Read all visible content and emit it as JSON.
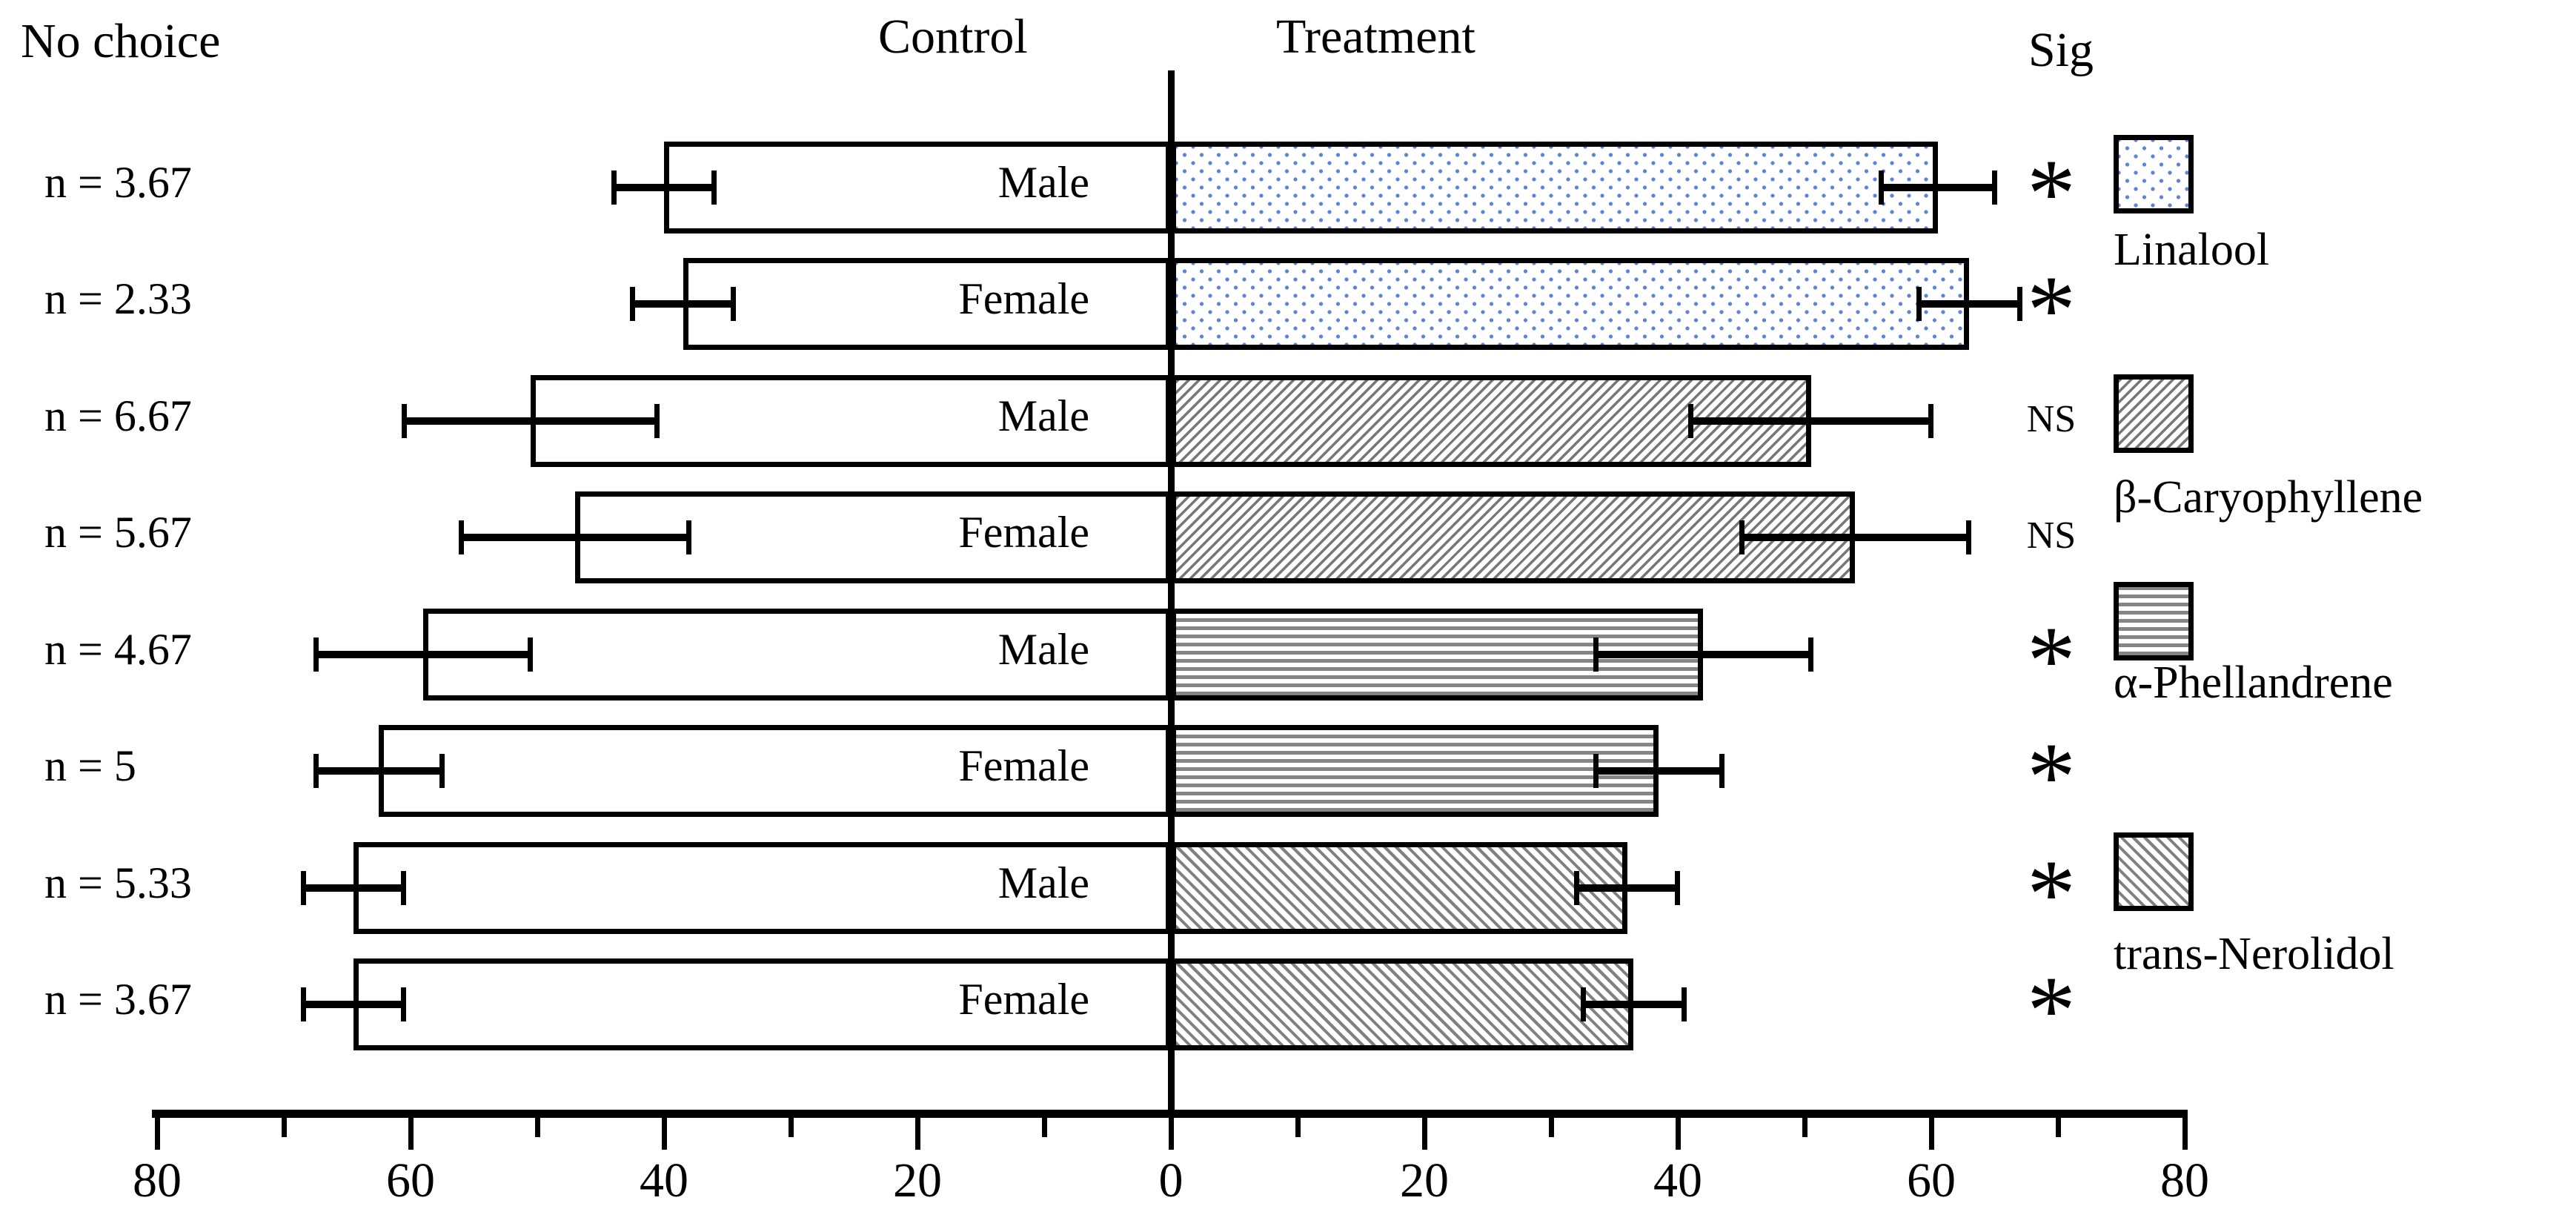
{
  "colors": {
    "dot_blue": "#5b84d8",
    "hatch_gray": "#7b7b7b",
    "line_black": "#000000",
    "background": "#ffffff"
  },
  "chart_data": {
    "type": "bar",
    "subtype": "diverging-horizontal-with-error-bars",
    "title": "No choice",
    "left_header": "Control",
    "right_header": "Treatment",
    "sig_header": "Sig",
    "xlabel": "",
    "xlim": [
      -80,
      80
    ],
    "x_ticks": [
      -80,
      -60,
      -40,
      -20,
      0,
      20,
      40,
      60,
      80
    ],
    "x_minor_ticks": [
      -70,
      -50,
      -30,
      -10,
      10,
      30,
      50,
      70
    ],
    "x_tick_labels": [
      "80",
      "60",
      "40",
      "20",
      "0",
      "20",
      "40",
      "60",
      "80"
    ],
    "grid": false,
    "rows": [
      {
        "compound": "Linalool",
        "sex": "Male",
        "n_label": "n = 3.67",
        "n": 3.67,
        "control": 40,
        "control_err": 4,
        "treatment": 60.5,
        "treatment_err": 4.5,
        "sig": "*"
      },
      {
        "compound": "Linalool",
        "sex": "Female",
        "n_label": "n = 2.33",
        "n": 2.33,
        "control": 38.5,
        "control_err": 4,
        "treatment": 63,
        "treatment_err": 4,
        "sig": "*"
      },
      {
        "compound": "β-Caryophyllene",
        "sex": "Male",
        "n_label": "n = 6.67",
        "n": 6.67,
        "control": 50.5,
        "control_err": 10,
        "treatment": 50.5,
        "treatment_err": 9.5,
        "sig": "NS"
      },
      {
        "compound": "β-Caryophyllene",
        "sex": "Female",
        "n_label": "n = 5.67",
        "n": 5.67,
        "control": 47,
        "control_err": 9,
        "treatment": 54,
        "treatment_err": 9,
        "sig": "NS"
      },
      {
        "compound": "α-Phellandrene",
        "sex": "Male",
        "n_label": "n = 4.67",
        "n": 4.67,
        "control": 59,
        "control_err": 8.5,
        "treatment": 42,
        "treatment_err": 8.5,
        "sig": "*"
      },
      {
        "compound": "α-Phellandrene",
        "sex": "Female",
        "n_label": "n = 5",
        "n": 5,
        "control": 62.5,
        "control_err": 5,
        "treatment": 38.5,
        "treatment_err": 5,
        "sig": "*"
      },
      {
        "compound": "trans-Nerolidol",
        "sex": "Male",
        "n_label": "n = 5.33",
        "n": 5.33,
        "control": 64.5,
        "control_err": 4,
        "treatment": 36,
        "treatment_err": 4,
        "sig": "*"
      },
      {
        "compound": "trans-Nerolidol",
        "sex": "Female",
        "n_label": "n = 3.67",
        "n": 3.67,
        "control": 64.5,
        "control_err": 4,
        "treatment": 36.5,
        "treatment_err": 4,
        "sig": "*"
      }
    ],
    "legend": [
      {
        "label": "Linalool",
        "pattern": "blue-dots"
      },
      {
        "label": "β-Caryophyllene",
        "pattern": "forward-diagonal-hatch"
      },
      {
        "label": "α-Phellandrene",
        "pattern": "horizontal-lines"
      },
      {
        "label": "trans-Nerolidol",
        "pattern": "backward-diagonal-hatch"
      }
    ],
    "legend_position": "right",
    "series": [
      {
        "name": "Control",
        "values": [
          40,
          38.5,
          50.5,
          47,
          59,
          62.5,
          64.5,
          64.5
        ],
        "errors": [
          4,
          4,
          10,
          9,
          8.5,
          5,
          4,
          4
        ]
      },
      {
        "name": "Treatment",
        "values": [
          60.5,
          63,
          50.5,
          54,
          42,
          38.5,
          36,
          36.5
        ],
        "errors": [
          4.5,
          4,
          9.5,
          9,
          8.5,
          5,
          4,
          4
        ]
      }
    ],
    "significance": [
      "*",
      "*",
      "NS",
      "NS",
      "*",
      "*",
      "*",
      "*"
    ],
    "no_choice_n": [
      3.67,
      2.33,
      6.67,
      5.67,
      4.67,
      5,
      5.33,
      3.67
    ]
  }
}
